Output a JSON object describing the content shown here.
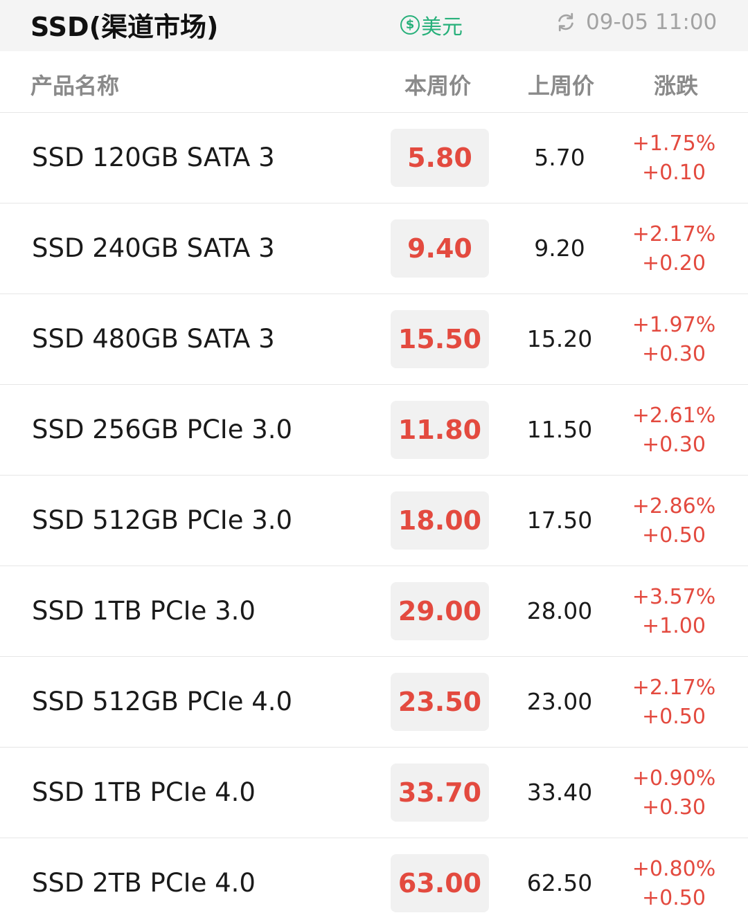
{
  "header": {
    "title": "SSD(渠道市场)",
    "currency_label": "美元",
    "currency_icon": "dollar-circle-icon",
    "refresh_icon": "refresh-icon",
    "updated_time": "09-05 11:00"
  },
  "columns": {
    "name": "产品名称",
    "this_week": "本周价",
    "last_week": "上周价",
    "change": "涨跌"
  },
  "colors": {
    "accent_red": "#e34a3f",
    "accent_green": "#27b07a"
  },
  "rows": [
    {
      "name": "SSD 120GB SATA 3",
      "this_week": "5.80",
      "last_week": "5.70",
      "pct": "+1.75%",
      "abs": "+0.10"
    },
    {
      "name": "SSD 240GB SATA 3",
      "this_week": "9.40",
      "last_week": "9.20",
      "pct": "+2.17%",
      "abs": "+0.20"
    },
    {
      "name": "SSD 480GB SATA 3",
      "this_week": "15.50",
      "last_week": "15.20",
      "pct": "+1.97%",
      "abs": "+0.30"
    },
    {
      "name": "SSD 256GB PCIe 3.0",
      "this_week": "11.80",
      "last_week": "11.50",
      "pct": "+2.61%",
      "abs": "+0.30"
    },
    {
      "name": "SSD 512GB PCIe 3.0",
      "this_week": "18.00",
      "last_week": "17.50",
      "pct": "+2.86%",
      "abs": "+0.50"
    },
    {
      "name": "SSD 1TB PCIe 3.0",
      "this_week": "29.00",
      "last_week": "28.00",
      "pct": "+3.57%",
      "abs": "+1.00"
    },
    {
      "name": "SSD 512GB PCIe 4.0",
      "this_week": "23.50",
      "last_week": "23.00",
      "pct": "+2.17%",
      "abs": "+0.50"
    },
    {
      "name": "SSD 1TB PCIe 4.0",
      "this_week": "33.70",
      "last_week": "33.40",
      "pct": "+0.90%",
      "abs": "+0.30"
    },
    {
      "name": "SSD 2TB PCIe 4.0",
      "this_week": "63.00",
      "last_week": "62.50",
      "pct": "+0.80%",
      "abs": "+0.50"
    }
  ]
}
